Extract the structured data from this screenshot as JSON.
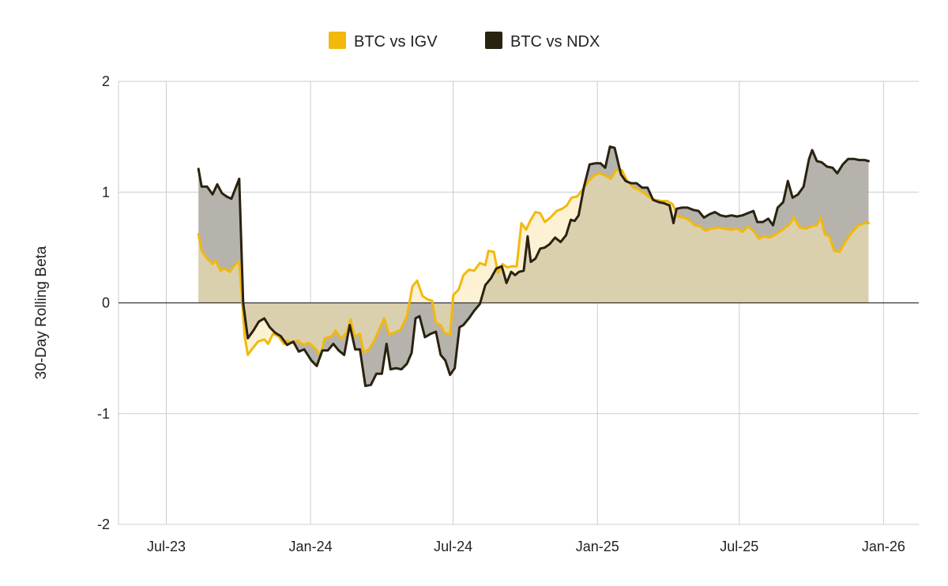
{
  "chart_data": {
    "type": "area",
    "title": "",
    "xlabel": "",
    "ylabel": "30-Day Rolling Beta",
    "ylim": [
      -2,
      2
    ],
    "xlim": [
      "2023-05-01",
      "2026-02-15"
    ],
    "y_ticks": [
      {
        "value": 2,
        "label": "2"
      },
      {
        "value": 1,
        "label": "1"
      },
      {
        "value": 0,
        "label": "0"
      },
      {
        "value": -1,
        "label": "-1"
      },
      {
        "value": -2,
        "label": "-2"
      }
    ],
    "x_ticks": [
      {
        "date": "2023-07-01",
        "label": "Jul-23"
      },
      {
        "date": "2024-01-01",
        "label": "Jan-24"
      },
      {
        "date": "2024-07-01",
        "label": "Jul-24"
      },
      {
        "date": "2025-01-01",
        "label": "Jan-25"
      },
      {
        "date": "2025-07-01",
        "label": "Jul-25"
      },
      {
        "date": "2026-01-01",
        "label": "Jan-26"
      }
    ],
    "grid": true,
    "legend_position": "top",
    "series": [
      {
        "name": "BTC vs IGV",
        "color": "#F2B90D",
        "fill": "#FAE8AE",
        "points": [
          [
            "2023-08-11",
            0.62
          ],
          [
            "2023-08-15",
            0.47
          ],
          [
            "2023-08-22",
            0.4
          ],
          [
            "2023-08-29",
            0.35
          ],
          [
            "2023-09-02",
            0.38
          ],
          [
            "2023-09-08",
            0.29
          ],
          [
            "2023-09-13",
            0.31
          ],
          [
            "2023-09-20",
            0.28
          ],
          [
            "2023-09-27",
            0.35
          ],
          [
            "2023-10-02",
            0.37
          ],
          [
            "2023-10-09",
            -0.3
          ],
          [
            "2023-10-13",
            -0.47
          ],
          [
            "2023-10-18",
            -0.42
          ],
          [
            "2023-10-26",
            -0.35
          ],
          [
            "2023-11-03",
            -0.33
          ],
          [
            "2023-11-08",
            -0.37
          ],
          [
            "2023-11-14",
            -0.28
          ],
          [
            "2023-11-21",
            -0.3
          ],
          [
            "2023-11-28",
            -0.37
          ],
          [
            "2023-12-02",
            -0.34
          ],
          [
            "2023-12-08",
            -0.36
          ],
          [
            "2023-12-16",
            -0.34
          ],
          [
            "2023-12-23",
            -0.38
          ],
          [
            "2023-12-30",
            -0.36
          ],
          [
            "2024-01-08",
            -0.42
          ],
          [
            "2024-01-14",
            -0.48
          ],
          [
            "2024-01-19",
            -0.32
          ],
          [
            "2024-01-28",
            -0.3
          ],
          [
            "2024-02-02",
            -0.25
          ],
          [
            "2024-02-09",
            -0.32
          ],
          [
            "2024-02-16",
            -0.27
          ],
          [
            "2024-02-21",
            -0.15
          ],
          [
            "2024-02-26",
            -0.3
          ],
          [
            "2024-03-04",
            -0.28
          ],
          [
            "2024-03-09",
            -0.45
          ],
          [
            "2024-03-15",
            -0.42
          ],
          [
            "2024-03-22",
            -0.35
          ],
          [
            "2024-03-28",
            -0.25
          ],
          [
            "2024-04-04",
            -0.14
          ],
          [
            "2024-04-10",
            -0.28
          ],
          [
            "2024-04-17",
            -0.27
          ],
          [
            "2024-04-25",
            -0.24
          ],
          [
            "2024-05-03",
            -0.12
          ],
          [
            "2024-05-10",
            0.15
          ],
          [
            "2024-05-16",
            0.2
          ],
          [
            "2024-05-23",
            0.06
          ],
          [
            "2024-05-30",
            0.03
          ],
          [
            "2024-06-04",
            0.02
          ],
          [
            "2024-06-09",
            -0.18
          ],
          [
            "2024-06-15",
            -0.2
          ],
          [
            "2024-06-20",
            -0.27
          ],
          [
            "2024-06-27",
            -0.29
          ],
          [
            "2024-07-01",
            0.07
          ],
          [
            "2024-07-08",
            0.12
          ],
          [
            "2024-07-14",
            0.25
          ],
          [
            "2024-07-21",
            0.3
          ],
          [
            "2024-07-28",
            0.29
          ],
          [
            "2024-08-04",
            0.36
          ],
          [
            "2024-08-11",
            0.34
          ],
          [
            "2024-08-15",
            0.47
          ],
          [
            "2024-08-22",
            0.46
          ],
          [
            "2024-08-27",
            0.27
          ],
          [
            "2024-09-02",
            0.35
          ],
          [
            "2024-09-08",
            0.32
          ],
          [
            "2024-09-14",
            0.33
          ],
          [
            "2024-09-20",
            0.33
          ],
          [
            "2024-09-26",
            0.72
          ],
          [
            "2024-10-02",
            0.66
          ],
          [
            "2024-10-08",
            0.75
          ],
          [
            "2024-10-14",
            0.82
          ],
          [
            "2024-10-20",
            0.81
          ],
          [
            "2024-10-26",
            0.73
          ],
          [
            "2024-11-02",
            0.77
          ],
          [
            "2024-11-10",
            0.83
          ],
          [
            "2024-11-17",
            0.85
          ],
          [
            "2024-11-23",
            0.88
          ],
          [
            "2024-11-29",
            0.95
          ],
          [
            "2024-12-06",
            0.96
          ],
          [
            "2024-12-14",
            1.03
          ],
          [
            "2024-12-21",
            1.1
          ],
          [
            "2024-12-28",
            1.15
          ],
          [
            "2025-01-04",
            1.17
          ],
          [
            "2025-01-11",
            1.15
          ],
          [
            "2025-01-18",
            1.12
          ],
          [
            "2025-01-25",
            1.2
          ],
          [
            "2025-02-01",
            1.2
          ],
          [
            "2025-02-08",
            1.1
          ],
          [
            "2025-02-16",
            1.04
          ],
          [
            "2025-02-23",
            1.02
          ],
          [
            "2025-03-02",
            0.99
          ],
          [
            "2025-03-09",
            0.95
          ],
          [
            "2025-03-16",
            0.93
          ],
          [
            "2025-03-24",
            0.92
          ],
          [
            "2025-03-31",
            0.92
          ],
          [
            "2025-04-07",
            0.89
          ],
          [
            "2025-04-14",
            0.78
          ],
          [
            "2025-04-21",
            0.77
          ],
          [
            "2025-04-28",
            0.75
          ],
          [
            "2025-05-05",
            0.7
          ],
          [
            "2025-05-12",
            0.69
          ],
          [
            "2025-05-19",
            0.65
          ],
          [
            "2025-05-26",
            0.67
          ],
          [
            "2025-06-04",
            0.68
          ],
          [
            "2025-06-12",
            0.67
          ],
          [
            "2025-06-20",
            0.66
          ],
          [
            "2025-06-28",
            0.67
          ],
          [
            "2025-07-05",
            0.64
          ],
          [
            "2025-07-12",
            0.69
          ],
          [
            "2025-07-19",
            0.65
          ],
          [
            "2025-07-26",
            0.58
          ],
          [
            "2025-08-02",
            0.6
          ],
          [
            "2025-08-09",
            0.59
          ],
          [
            "2025-08-17",
            0.62
          ],
          [
            "2025-08-25",
            0.66
          ],
          [
            "2025-09-02",
            0.7
          ],
          [
            "2025-09-09",
            0.77
          ],
          [
            "2025-09-16",
            0.68
          ],
          [
            "2025-09-24",
            0.67
          ],
          [
            "2025-10-01",
            0.69
          ],
          [
            "2025-10-08",
            0.7
          ],
          [
            "2025-10-13",
            0.77
          ],
          [
            "2025-10-18",
            0.62
          ],
          [
            "2025-10-24",
            0.6
          ],
          [
            "2025-10-30",
            0.47
          ],
          [
            "2025-11-06",
            0.46
          ],
          [
            "2025-11-14",
            0.56
          ],
          [
            "2025-11-22",
            0.64
          ],
          [
            "2025-11-30",
            0.7
          ],
          [
            "2025-12-08",
            0.72
          ],
          [
            "2025-12-13",
            0.72
          ]
        ]
      },
      {
        "name": "BTC vs NDX",
        "color": "#2A2210",
        "fill": "#B6B3AD",
        "points": [
          [
            "2023-08-11",
            1.21
          ],
          [
            "2023-08-15",
            1.05
          ],
          [
            "2023-08-22",
            1.05
          ],
          [
            "2023-08-29",
            0.98
          ],
          [
            "2023-09-04",
            1.07
          ],
          [
            "2023-09-10",
            0.99
          ],
          [
            "2023-09-16",
            0.96
          ],
          [
            "2023-09-22",
            0.94
          ],
          [
            "2023-10-02",
            1.12
          ],
          [
            "2023-10-07",
            0.0
          ],
          [
            "2023-10-13",
            -0.32
          ],
          [
            "2023-10-20",
            -0.25
          ],
          [
            "2023-10-27",
            -0.17
          ],
          [
            "2023-11-03",
            -0.14
          ],
          [
            "2023-11-10",
            -0.22
          ],
          [
            "2023-11-17",
            -0.27
          ],
          [
            "2023-11-24",
            -0.3
          ],
          [
            "2023-12-02",
            -0.38
          ],
          [
            "2023-12-10",
            -0.35
          ],
          [
            "2023-12-17",
            -0.44
          ],
          [
            "2023-12-24",
            -0.42
          ],
          [
            "2024-01-02",
            -0.52
          ],
          [
            "2024-01-09",
            -0.57
          ],
          [
            "2024-01-16",
            -0.43
          ],
          [
            "2024-01-23",
            -0.43
          ],
          [
            "2024-01-30",
            -0.37
          ],
          [
            "2024-02-06",
            -0.43
          ],
          [
            "2024-02-13",
            -0.47
          ],
          [
            "2024-02-20",
            -0.2
          ],
          [
            "2024-02-27",
            -0.42
          ],
          [
            "2024-03-04",
            -0.42
          ],
          [
            "2024-03-11",
            -0.75
          ],
          [
            "2024-03-18",
            -0.74
          ],
          [
            "2024-03-25",
            -0.64
          ],
          [
            "2024-04-01",
            -0.64
          ],
          [
            "2024-04-07",
            -0.37
          ],
          [
            "2024-04-12",
            -0.6
          ],
          [
            "2024-04-19",
            -0.59
          ],
          [
            "2024-04-26",
            -0.6
          ],
          [
            "2024-05-03",
            -0.55
          ],
          [
            "2024-05-09",
            -0.45
          ],
          [
            "2024-05-14",
            -0.14
          ],
          [
            "2024-05-19",
            -0.12
          ],
          [
            "2024-05-26",
            -0.31
          ],
          [
            "2024-06-02",
            -0.28
          ],
          [
            "2024-06-09",
            -0.26
          ],
          [
            "2024-06-15",
            -0.47
          ],
          [
            "2024-06-21",
            -0.52
          ],
          [
            "2024-06-27",
            -0.65
          ],
          [
            "2024-07-03",
            -0.59
          ],
          [
            "2024-07-09",
            -0.22
          ],
          [
            "2024-07-14",
            -0.2
          ],
          [
            "2024-07-21",
            -0.14
          ],
          [
            "2024-07-28",
            -0.07
          ],
          [
            "2024-08-04",
            -0.01
          ],
          [
            "2024-08-11",
            0.16
          ],
          [
            "2024-08-18",
            0.22
          ],
          [
            "2024-08-25",
            0.31
          ],
          [
            "2024-09-01",
            0.33
          ],
          [
            "2024-09-07",
            0.18
          ],
          [
            "2024-09-13",
            0.28
          ],
          [
            "2024-09-18",
            0.25
          ],
          [
            "2024-09-23",
            0.28
          ],
          [
            "2024-09-29",
            0.29
          ],
          [
            "2024-10-04",
            0.6
          ],
          [
            "2024-10-08",
            0.37
          ],
          [
            "2024-10-14",
            0.4
          ],
          [
            "2024-10-20",
            0.49
          ],
          [
            "2024-10-26",
            0.5
          ],
          [
            "2024-11-01",
            0.53
          ],
          [
            "2024-11-08",
            0.59
          ],
          [
            "2024-11-15",
            0.55
          ],
          [
            "2024-11-22",
            0.61
          ],
          [
            "2024-11-28",
            0.75
          ],
          [
            "2024-12-03",
            0.74
          ],
          [
            "2024-12-08",
            0.79
          ],
          [
            "2024-12-15",
            1.05
          ],
          [
            "2024-12-22",
            1.25
          ],
          [
            "2024-12-29",
            1.26
          ],
          [
            "2025-01-05",
            1.26
          ],
          [
            "2025-01-11",
            1.22
          ],
          [
            "2025-01-17",
            1.41
          ],
          [
            "2025-01-23",
            1.4
          ],
          [
            "2025-01-31",
            1.16
          ],
          [
            "2025-02-06",
            1.1
          ],
          [
            "2025-02-13",
            1.08
          ],
          [
            "2025-02-20",
            1.08
          ],
          [
            "2025-02-27",
            1.04
          ],
          [
            "2025-03-06",
            1.04
          ],
          [
            "2025-03-13",
            0.93
          ],
          [
            "2025-03-20",
            0.91
          ],
          [
            "2025-03-27",
            0.9
          ],
          [
            "2025-04-03",
            0.88
          ],
          [
            "2025-04-08",
            0.72
          ],
          [
            "2025-04-12",
            0.85
          ],
          [
            "2025-04-19",
            0.86
          ],
          [
            "2025-04-26",
            0.86
          ],
          [
            "2025-05-03",
            0.84
          ],
          [
            "2025-05-10",
            0.83
          ],
          [
            "2025-05-17",
            0.77
          ],
          [
            "2025-05-24",
            0.8
          ],
          [
            "2025-05-31",
            0.82
          ],
          [
            "2025-06-07",
            0.79
          ],
          [
            "2025-06-14",
            0.78
          ],
          [
            "2025-06-21",
            0.79
          ],
          [
            "2025-06-28",
            0.78
          ],
          [
            "2025-07-05",
            0.79
          ],
          [
            "2025-07-12",
            0.81
          ],
          [
            "2025-07-19",
            0.83
          ],
          [
            "2025-07-24",
            0.73
          ],
          [
            "2025-07-31",
            0.73
          ],
          [
            "2025-08-07",
            0.76
          ],
          [
            "2025-08-13",
            0.7
          ],
          [
            "2025-08-19",
            0.86
          ],
          [
            "2025-08-26",
            0.91
          ],
          [
            "2025-09-01",
            1.1
          ],
          [
            "2025-09-07",
            0.95
          ],
          [
            "2025-09-14",
            0.98
          ],
          [
            "2025-09-21",
            1.05
          ],
          [
            "2025-09-28",
            1.3
          ],
          [
            "2025-10-02",
            1.38
          ],
          [
            "2025-10-08",
            1.28
          ],
          [
            "2025-10-14",
            1.27
          ],
          [
            "2025-10-21",
            1.23
          ],
          [
            "2025-10-28",
            1.22
          ],
          [
            "2025-11-03",
            1.17
          ],
          [
            "2025-11-10",
            1.25
          ],
          [
            "2025-11-17",
            1.3
          ],
          [
            "2025-11-24",
            1.3
          ],
          [
            "2025-12-01",
            1.29
          ],
          [
            "2025-12-08",
            1.29
          ],
          [
            "2025-12-13",
            1.28
          ]
        ]
      }
    ]
  }
}
